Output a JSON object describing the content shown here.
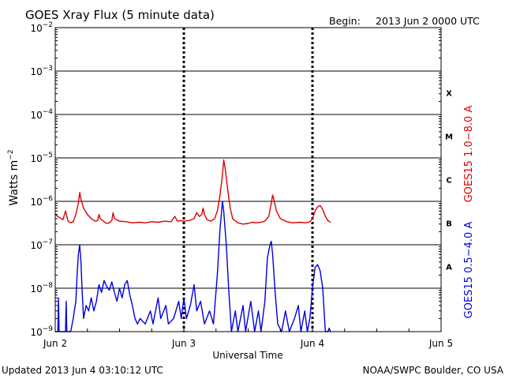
{
  "header": {
    "title": "GOES Xray Flux (5 minute data)",
    "begin_label": "Begin:",
    "begin_value": "2013 Jun 2 0000 UTC"
  },
  "footer": {
    "updated": "Updated 2013 Jun  4 03:10:12 UTC",
    "credit": "NOAA/SWPC Boulder, CO USA"
  },
  "chart_data": {
    "type": "line",
    "title": "GOES Xray Flux (5 minute data)",
    "xlabel": "Universal Time",
    "ylabel_base": "Watts m",
    "ylabel_exp": "−2",
    "y_scale": "log",
    "ylim": [
      1e-09,
      0.01
    ],
    "xlim_days": [
      0,
      3
    ],
    "x_ticks": [
      {
        "label": "Jun 2",
        "day": 0
      },
      {
        "label": "Jun 3",
        "day": 1
      },
      {
        "label": "Jun 4",
        "day": 2
      },
      {
        "label": "Jun 5",
        "day": 3
      }
    ],
    "y_ticks": [
      {
        "mant": "10",
        "exp": "−2",
        "value": 0.01
      },
      {
        "mant": "10",
        "exp": "−3",
        "value": 0.001
      },
      {
        "mant": "10",
        "exp": "−4",
        "value": 0.0001
      },
      {
        "mant": "10",
        "exp": "−5",
        "value": 1e-05
      },
      {
        "mant": "10",
        "exp": "−6",
        "value": 1e-06
      },
      {
        "mant": "10",
        "exp": "−7",
        "value": 1e-07
      },
      {
        "mant": "10",
        "exp": "−8",
        "value": 1e-08
      },
      {
        "mant": "10",
        "exp": "−9",
        "value": 1e-09
      }
    ],
    "flare_classes": [
      {
        "label": "X",
        "value": 0.000316
      },
      {
        "label": "M",
        "value": 3.16e-05
      },
      {
        "label": "C",
        "value": 3.16e-06
      },
      {
        "label": "B",
        "value": 3.16e-07
      },
      {
        "label": "A",
        "value": 3.16e-08
      }
    ],
    "grid": "horizontal at each decade, dashed vertical at day boundaries",
    "series": [
      {
        "name": "GOES15 1.0−8.0 A",
        "color": "#dd0000",
        "points": [
          [
            0.0,
            5e-07
          ],
          [
            0.03,
            4.3e-07
          ],
          [
            0.06,
            3.8e-07
          ],
          [
            0.08,
            6e-07
          ],
          [
            0.1,
            3.5e-07
          ],
          [
            0.12,
            3.2e-07
          ],
          [
            0.14,
            3.4e-07
          ],
          [
            0.16,
            5e-07
          ],
          [
            0.18,
            9e-07
          ],
          [
            0.19,
            1.6e-06
          ],
          [
            0.2,
            1.1e-06
          ],
          [
            0.22,
            7e-07
          ],
          [
            0.25,
            5e-07
          ],
          [
            0.28,
            4e-07
          ],
          [
            0.31,
            3.5e-07
          ],
          [
            0.33,
            3.6e-07
          ],
          [
            0.34,
            5e-07
          ],
          [
            0.35,
            4e-07
          ],
          [
            0.38,
            3.4e-07
          ],
          [
            0.4,
            3.1e-07
          ],
          [
            0.42,
            3.2e-07
          ],
          [
            0.44,
            3.6e-07
          ],
          [
            0.45,
            5.5e-07
          ],
          [
            0.46,
            4e-07
          ],
          [
            0.5,
            3.5e-07
          ],
          [
            0.55,
            3.4e-07
          ],
          [
            0.6,
            3.2e-07
          ],
          [
            0.65,
            3.3e-07
          ],
          [
            0.7,
            3.2e-07
          ],
          [
            0.75,
            3.4e-07
          ],
          [
            0.8,
            3.3e-07
          ],
          [
            0.85,
            3.5e-07
          ],
          [
            0.9,
            3.4e-07
          ],
          [
            0.93,
            4.5e-07
          ],
          [
            0.95,
            3.5e-07
          ],
          [
            0.98,
            3.6e-07
          ],
          [
            1.0,
            3.5e-07
          ],
          [
            1.04,
            3.6e-07
          ],
          [
            1.08,
            4e-07
          ],
          [
            1.1,
            5.5e-07
          ],
          [
            1.12,
            4.5e-07
          ],
          [
            1.14,
            5e-07
          ],
          [
            1.15,
            7e-07
          ],
          [
            1.16,
            5e-07
          ],
          [
            1.18,
            3.8e-07
          ],
          [
            1.21,
            3.5e-07
          ],
          [
            1.24,
            4e-07
          ],
          [
            1.26,
            6e-07
          ],
          [
            1.28,
            1.3e-06
          ],
          [
            1.3,
            4e-06
          ],
          [
            1.31,
            9e-06
          ],
          [
            1.32,
            6e-06
          ],
          [
            1.34,
            2e-06
          ],
          [
            1.36,
            7e-07
          ],
          [
            1.38,
            4e-07
          ],
          [
            1.42,
            3.2e-07
          ],
          [
            1.46,
            3e-07
          ],
          [
            1.5,
            3.1e-07
          ],
          [
            1.53,
            3.3e-07
          ],
          [
            1.56,
            3.2e-07
          ],
          [
            1.6,
            3.3e-07
          ],
          [
            1.63,
            3.5e-07
          ],
          [
            1.66,
            4.5e-07
          ],
          [
            1.68,
            9e-07
          ],
          [
            1.69,
            1.4e-06
          ],
          [
            1.7,
            1.1e-06
          ],
          [
            1.72,
            6e-07
          ],
          [
            1.75,
            4e-07
          ],
          [
            1.8,
            3.4e-07
          ],
          [
            1.85,
            3.2e-07
          ],
          [
            1.9,
            3.3e-07
          ],
          [
            1.95,
            3.2e-07
          ],
          [
            1.98,
            3.4e-07
          ],
          [
            2.0,
            4e-07
          ],
          [
            2.02,
            6e-07
          ],
          [
            2.04,
            7.5e-07
          ],
          [
            2.06,
            8e-07
          ],
          [
            2.08,
            6.5e-07
          ],
          [
            2.1,
            4.5e-07
          ],
          [
            2.12,
            3.6e-07
          ],
          [
            2.14,
            3.3e-07
          ]
        ]
      },
      {
        "name": "GOES15 0.5−4.0 A",
        "color": "#0000dd",
        "points": [
          [
            0.0,
            1e-09
          ],
          [
            0.02,
            1e-09
          ],
          [
            0.025,
            6e-09
          ],
          [
            0.03,
            1e-09
          ],
          [
            0.08,
            1e-09
          ],
          [
            0.085,
            5e-09
          ],
          [
            0.09,
            1e-09
          ],
          [
            0.12,
            1e-09
          ],
          [
            0.14,
            2e-09
          ],
          [
            0.16,
            5e-09
          ],
          [
            0.17,
            2e-08
          ],
          [
            0.18,
            6e-08
          ],
          [
            0.19,
            1e-07
          ],
          [
            0.2,
            4e-08
          ],
          [
            0.21,
            8e-09
          ],
          [
            0.22,
            2e-09
          ],
          [
            0.24,
            4e-09
          ],
          [
            0.26,
            3e-09
          ],
          [
            0.28,
            6e-09
          ],
          [
            0.3,
            3e-09
          ],
          [
            0.32,
            5e-09
          ],
          [
            0.34,
            1.2e-08
          ],
          [
            0.36,
            8e-09
          ],
          [
            0.38,
            1.5e-08
          ],
          [
            0.4,
            1.1e-08
          ],
          [
            0.42,
            9e-09
          ],
          [
            0.44,
            1.4e-08
          ],
          [
            0.46,
            8e-09
          ],
          [
            0.48,
            5e-09
          ],
          [
            0.5,
            1e-08
          ],
          [
            0.52,
            6e-09
          ],
          [
            0.54,
            1.2e-08
          ],
          [
            0.56,
            1.5e-08
          ],
          [
            0.58,
            7e-09
          ],
          [
            0.6,
            4e-09
          ],
          [
            0.62,
            2e-09
          ],
          [
            0.64,
            1.5e-09
          ],
          [
            0.66,
            2e-09
          ],
          [
            0.7,
            1.5e-09
          ],
          [
            0.74,
            3e-09
          ],
          [
            0.76,
            1.5e-09
          ],
          [
            0.8,
            6e-09
          ],
          [
            0.82,
            2e-09
          ],
          [
            0.86,
            4e-09
          ],
          [
            0.88,
            1.5e-09
          ],
          [
            0.92,
            2e-09
          ],
          [
            0.96,
            5e-09
          ],
          [
            0.98,
            2e-09
          ],
          [
            1.0,
            6e-09
          ],
          [
            1.02,
            2e-09
          ],
          [
            1.05,
            4e-09
          ],
          [
            1.08,
            1.2e-08
          ],
          [
            1.1,
            3e-09
          ],
          [
            1.13,
            5e-09
          ],
          [
            1.16,
            1.5e-09
          ],
          [
            1.2,
            3e-09
          ],
          [
            1.23,
            1.5e-09
          ],
          [
            1.26,
            2e-08
          ],
          [
            1.28,
            2e-07
          ],
          [
            1.3,
            1e-06
          ],
          [
            1.31,
            6e-07
          ],
          [
            1.33,
            1e-07
          ],
          [
            1.35,
            8e-09
          ],
          [
            1.37,
            1e-09
          ],
          [
            1.4,
            3e-09
          ],
          [
            1.42,
            1e-09
          ],
          [
            1.46,
            4e-09
          ],
          [
            1.48,
            1e-09
          ],
          [
            1.52,
            5e-09
          ],
          [
            1.55,
            1e-09
          ],
          [
            1.58,
            3e-09
          ],
          [
            1.6,
            1e-09
          ],
          [
            1.63,
            5e-09
          ],
          [
            1.65,
            5e-08
          ],
          [
            1.67,
            1e-07
          ],
          [
            1.68,
            1.2e-07
          ],
          [
            1.69,
            6e-08
          ],
          [
            1.71,
            8e-09
          ],
          [
            1.73,
            1.5e-09
          ],
          [
            1.76,
            1e-09
          ],
          [
            1.79,
            3e-09
          ],
          [
            1.82,
            1e-09
          ],
          [
            1.86,
            2e-09
          ],
          [
            1.89,
            4e-09
          ],
          [
            1.91,
            1e-09
          ],
          [
            1.94,
            3e-09
          ],
          [
            1.96,
            1e-09
          ],
          [
            1.98,
            2e-09
          ],
          [
            2.0,
            1e-08
          ],
          [
            2.02,
            3e-08
          ],
          [
            2.04,
            3.5e-08
          ],
          [
            2.06,
            2.5e-08
          ],
          [
            2.08,
            1e-08
          ],
          [
            2.1,
            1e-09
          ],
          [
            2.12,
            1e-09
          ],
          [
            2.13,
            1.2e-09
          ],
          [
            2.14,
            1e-09
          ]
        ]
      }
    ]
  }
}
